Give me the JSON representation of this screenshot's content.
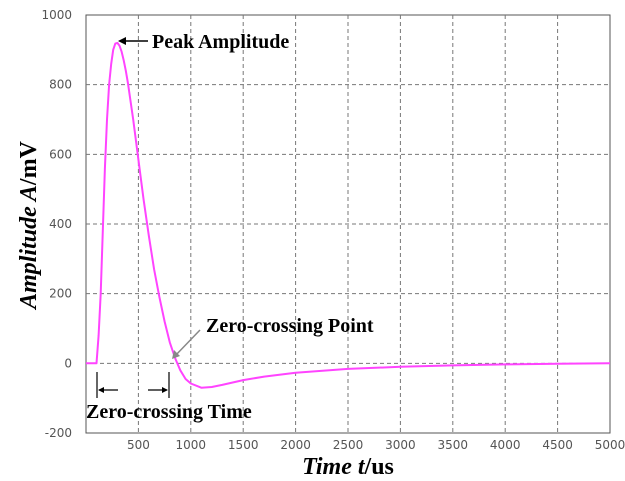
{
  "chart_data": {
    "type": "line",
    "xlabel_var": "Time",
    "xlabel_sym": "t",
    "xlabel_unit": "/us",
    "ylabel_var": "Amplitude",
    "ylabel_sym": "A",
    "ylabel_unit": "/mV",
    "xlim": [
      0,
      5000
    ],
    "ylim": [
      -200,
      1000
    ],
    "xticks": [
      500,
      1000,
      1500,
      2000,
      2500,
      3000,
      3500,
      4000,
      4500,
      5000
    ],
    "yticks": [
      -200,
      0,
      200,
      400,
      600,
      800,
      1000
    ],
    "grid": true,
    "series": [
      {
        "color": "#ff44ff",
        "x": [
          0,
          100,
          120,
          140,
          160,
          180,
          200,
          220,
          240,
          260,
          280,
          300,
          320,
          340,
          360,
          380,
          400,
          450,
          500,
          550,
          600,
          650,
          700,
          750,
          800,
          850,
          900,
          950,
          1000,
          1100,
          1200,
          1300,
          1400,
          1500,
          1700,
          2000,
          2500,
          3000,
          3500,
          4000,
          4500,
          5000
        ],
        "y": [
          0,
          0,
          80,
          200,
          380,
          560,
          700,
          800,
          860,
          900,
          918,
          920,
          912,
          895,
          870,
          840,
          805,
          700,
          585,
          470,
          365,
          270,
          190,
          120,
          60,
          15,
          -20,
          -45,
          -58,
          -70,
          -68,
          -62,
          -55,
          -48,
          -38,
          -27,
          -16,
          -10,
          -6,
          -3,
          -1,
          0
        ]
      }
    ],
    "annotations": {
      "peak": "Peak Amplitude",
      "zero_point": "Zero-crossing Point",
      "zero_time": "Zero-crossing Time"
    }
  }
}
